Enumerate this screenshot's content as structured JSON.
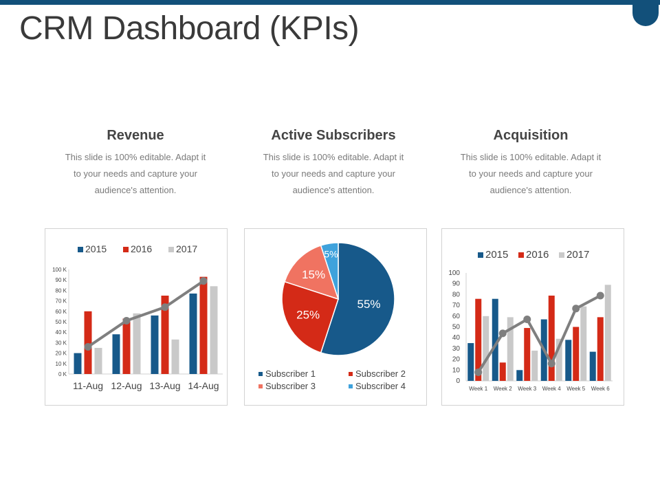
{
  "page": {
    "title": "CRM Dashboard (KPIs)"
  },
  "theme": {
    "c2015": "#17598a",
    "c2016": "#d42a17",
    "c2017": "#c9c9c9",
    "line": "#7f7f7f",
    "sub1": "#17598a",
    "sub2": "#d42a17",
    "sub3": "#f07361",
    "sub4": "#3fa2dc"
  },
  "kpis": [
    {
      "heading": "Revenue",
      "desc": "This slide is 100% editable. Adapt it to your needs and capture your audience's attention."
    },
    {
      "heading": "Active Subscribers",
      "desc": "This slide is 100% editable. Adapt it to your needs and capture your audience's attention."
    },
    {
      "heading": "Acquisition",
      "desc": "This slide is 100% editable. Adapt it to your needs and capture your audience's attention."
    }
  ],
  "chart_data": [
    {
      "type": "bar",
      "categories": [
        "11-Aug",
        "12-Aug",
        "13-Aug",
        "14-Aug"
      ],
      "series": [
        {
          "name": "2015",
          "values": [
            20,
            38,
            56,
            77
          ]
        },
        {
          "name": "2016",
          "values": [
            60,
            53,
            75,
            93
          ]
        },
        {
          "name": "2017",
          "values": [
            25,
            58,
            33,
            84
          ]
        }
      ],
      "line": [
        26,
        51,
        64,
        89
      ],
      "ylim": [
        0,
        100
      ],
      "yticks": [
        "0 K",
        "10 K",
        "20 K",
        "30 K",
        "40 K",
        "50 K",
        "60 K",
        "70 K",
        "80 K",
        "90 K",
        "100 K"
      ],
      "legend": "top"
    },
    {
      "type": "pie",
      "labels": [
        "Subscriber 1",
        "Subscriber 2",
        "Subscriber 3",
        "Subscriber 4"
      ],
      "values": [
        55,
        25,
        15,
        5
      ],
      "value_labels": [
        "55%",
        "25%",
        "15%",
        "5%"
      ],
      "legend": "bottom"
    },
    {
      "type": "bar",
      "categories": [
        "Week 1",
        "Week 2",
        "Week 3",
        "Week 4",
        "Week 5",
        "Week 6"
      ],
      "series": [
        {
          "name": "2015",
          "values": [
            35,
            76,
            10,
            57,
            38,
            27
          ]
        },
        {
          "name": "2016",
          "values": [
            76,
            17,
            49,
            79,
            50,
            59
          ]
        },
        {
          "name": "2017",
          "values": [
            60,
            59,
            28,
            39,
            69,
            89
          ]
        }
      ],
      "line": [
        8,
        44,
        57,
        16,
        67,
        79
      ],
      "ylim": [
        0,
        100
      ],
      "yticks": [
        "0",
        "10",
        "20",
        "30",
        "40",
        "50",
        "60",
        "70",
        "80",
        "90",
        "100"
      ],
      "legend": "top"
    }
  ]
}
